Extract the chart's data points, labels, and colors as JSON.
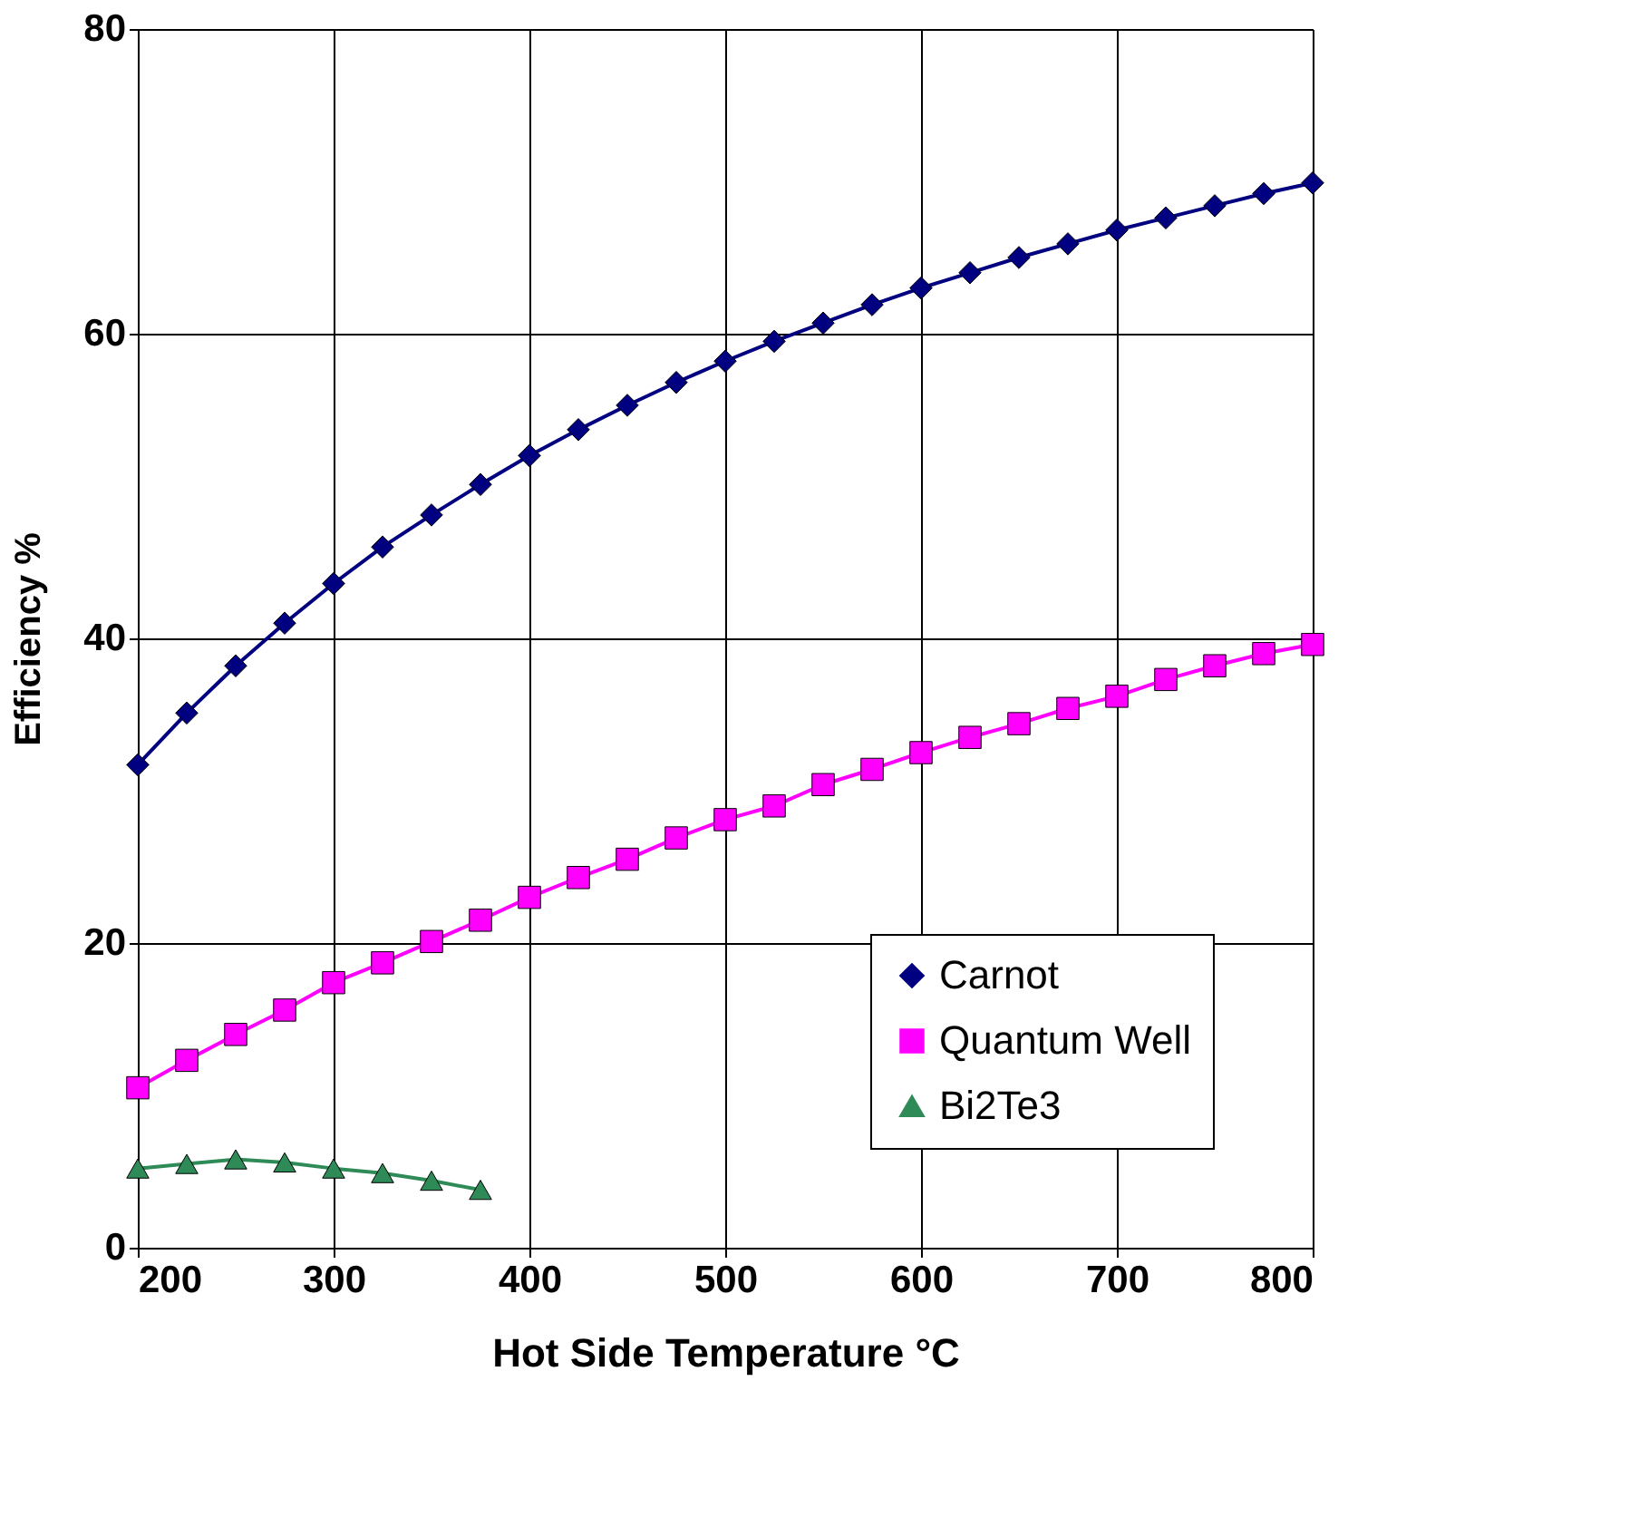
{
  "chart_data": {
    "type": "line",
    "xlabel": "Hot Side Temperature °C",
    "ylabel": "Efficiency %",
    "xlim": [
      200,
      800
    ],
    "xticks": [
      200,
      300,
      400,
      500,
      600,
      700,
      800
    ],
    "ylim": [
      0,
      80
    ],
    "yticks": [
      0,
      20,
      40,
      60,
      80
    ],
    "grid": true,
    "legend": "bottom right",
    "line_style": "solid",
    "series": [
      {
        "name": "Carnot",
        "color": "#000080",
        "marker": "diamond",
        "x": [
          200,
          225,
          250,
          275,
          300,
          325,
          350,
          375,
          400,
          425,
          450,
          475,
          500,
          525,
          550,
          575,
          600,
          625,
          650,
          675,
          700,
          725,
          750,
          775,
          800
        ],
        "values": [
          31.7,
          35.1,
          38.2,
          41.0,
          43.6,
          46.0,
          48.1,
          50.1,
          52.0,
          53.7,
          55.3,
          56.8,
          58.2,
          59.5,
          60.7,
          61.9,
          63.0,
          64.0,
          65.0,
          65.9,
          66.8,
          67.6,
          68.4,
          69.2,
          69.9
        ]
      },
      {
        "name": "Quantum Well",
        "color": "#ff00ff",
        "marker": "square",
        "x": [
          200,
          225,
          250,
          275,
          300,
          325,
          350,
          375,
          400,
          425,
          450,
          475,
          500,
          525,
          550,
          575,
          600,
          625,
          650,
          675,
          700,
          725,
          750,
          775,
          800
        ],
        "values": [
          10.5,
          12.3,
          14.0,
          15.6,
          17.4,
          18.7,
          20.1,
          21.5,
          23.0,
          24.3,
          25.5,
          26.9,
          28.1,
          29.0,
          30.4,
          31.4,
          32.5,
          33.5,
          34.4,
          35.4,
          36.2,
          37.3,
          38.2,
          39.0,
          39.6
        ]
      },
      {
        "name": "Bi2Te3",
        "color": "#2e8b57",
        "marker": "triangle",
        "x": [
          200,
          225,
          250,
          275,
          300,
          325,
          350,
          375
        ],
        "values": [
          5.2,
          5.5,
          5.8,
          5.6,
          5.2,
          4.9,
          4.4,
          3.8
        ]
      }
    ]
  }
}
